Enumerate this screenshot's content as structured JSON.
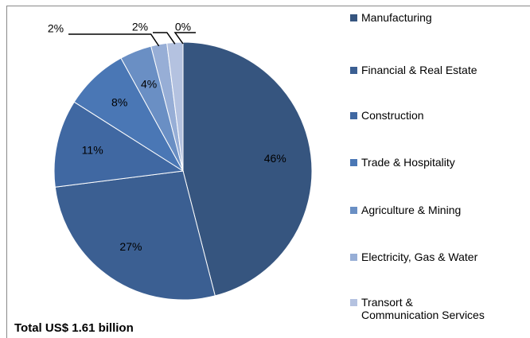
{
  "chart_data": {
    "type": "pie",
    "annotation": "Total US$ 1.61 billion",
    "categories": [
      "Manufacturing",
      "Financial & Real Estate",
      "Construction",
      "Trade & Hospitality",
      "Agriculture & Mining",
      "Electricity, Gas & Water",
      "Transort & Communication Services",
      null
    ],
    "values": [
      46,
      27,
      11,
      8,
      4,
      2,
      2,
      0
    ],
    "value_labels": [
      "46%",
      "27%",
      "11%",
      "8%",
      "4%",
      "2%",
      "2%",
      "0%"
    ],
    "colors": [
      "#36557f",
      "#3b5f92",
      "#4068a2",
      "#4a77b5",
      "#6a8fc4",
      "#97aed6",
      "#b4c2e0",
      "#c9d2e8"
    ],
    "legend": "right"
  }
}
